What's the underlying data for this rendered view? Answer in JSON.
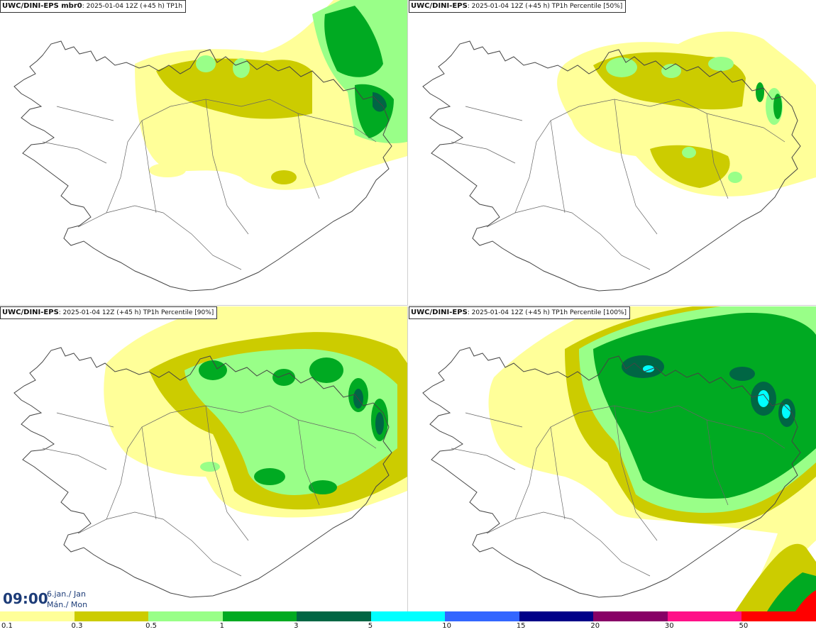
{
  "panels": [
    {
      "id": "tl",
      "run_label": "UWC/DINI-EPS mbr0",
      "details": ": 2025-01-04 12Z (+45 h)",
      "product": " TP1h"
    },
    {
      "id": "tr",
      "run_label": "UWC/DINI-EPS",
      "details": ": 2025-01-04 12Z (+45 h)",
      "product": " TP1h Percentile [50%]"
    },
    {
      "id": "bl",
      "run_label": "UWC/DINI-EPS",
      "details": ": 2025-01-04 12Z (+45 h)",
      "product": " TP1h Percentile [90%]"
    },
    {
      "id": "br",
      "run_label": "UWC/DINI-EPS",
      "details": ": 2025-01-04 12Z (+45 h)",
      "product": " TP1h Percentile [100%]"
    }
  ],
  "valid_time": {
    "time": "09:00",
    "date_line": "6.jan./ Jan",
    "day_line": "Mán./ Mon"
  },
  "legend": {
    "labels": [
      "0.1",
      "0.3",
      "0.5",
      "1",
      "3",
      "5",
      "10",
      "15",
      "20",
      "30",
      "50"
    ],
    "colors": [
      "#ffff99",
      "#cccc00",
      "#99ff88",
      "#00aa22",
      "#006644",
      "#00ffff",
      "#3366ff",
      "#000088",
      "#880066",
      "#ff1188",
      "#ff0000"
    ]
  }
}
